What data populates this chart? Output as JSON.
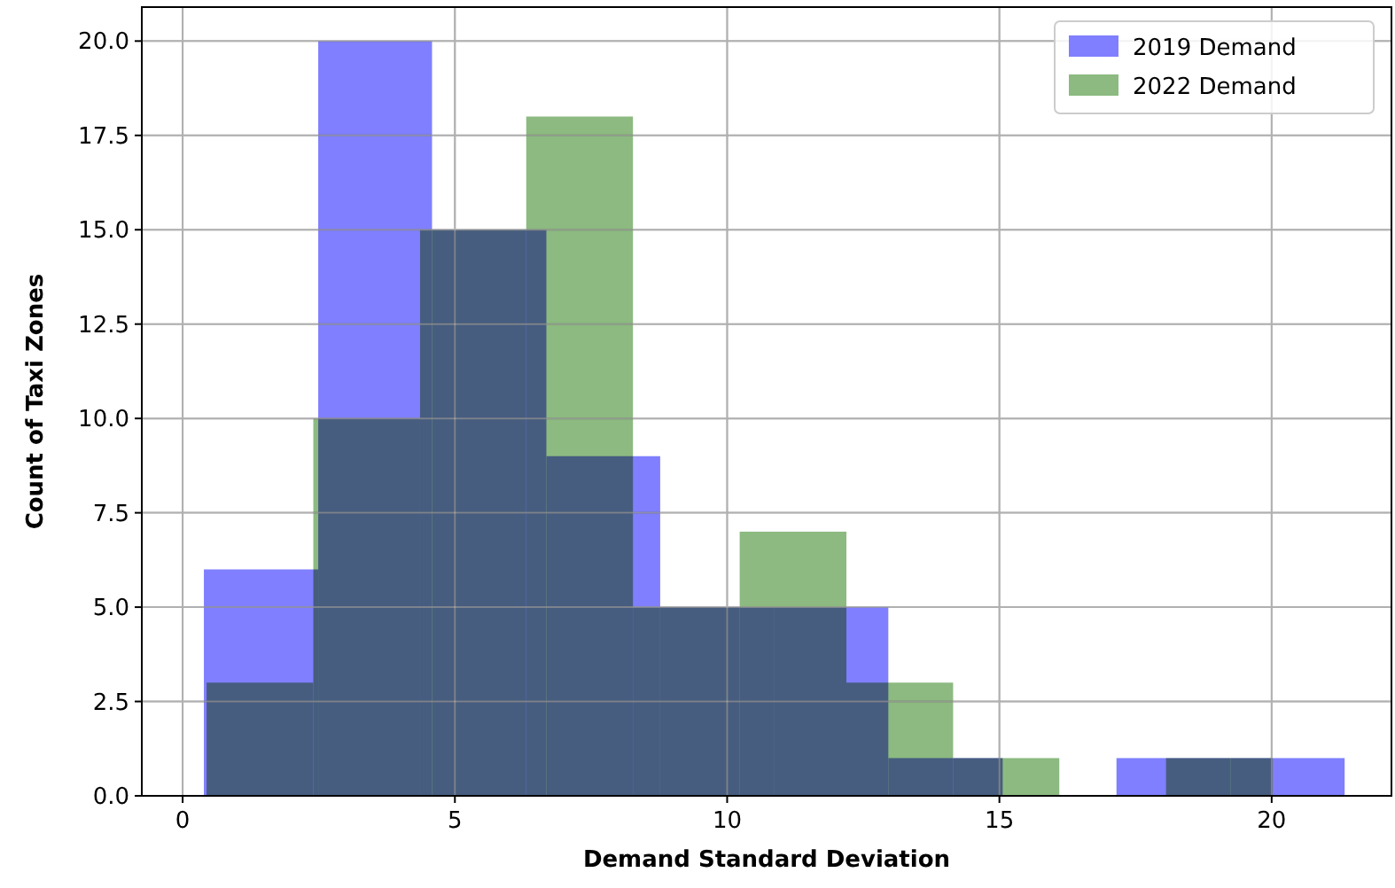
{
  "chart_data": {
    "type": "histogram",
    "xlabel": "Demand Standard Deviation",
    "ylabel": "Count of Taxi Zones",
    "bins": [
      0.39,
      2.49,
      4.58,
      6.68,
      8.77,
      10.87,
      12.96,
      15.06,
      17.15,
      19.25,
      21.34
    ],
    "series": [
      {
        "name": "2019 Demand",
        "color": "#7f7fff",
        "values": [
          6,
          20,
          15,
          9,
          5,
          5,
          1,
          0,
          1,
          1
        ]
      },
      {
        "name": "2022 Demand",
        "color": "#8cba80",
        "bins": [
          0.44,
          2.4,
          4.36,
          6.31,
          8.27,
          10.23,
          12.19,
          14.15,
          16.1,
          18.06,
          20.02
        ],
        "values": [
          3,
          10,
          15,
          18,
          5,
          7,
          3,
          1,
          0,
          1
        ]
      }
    ],
    "xlim": [
      -0.75,
      22.2
    ],
    "ylim": [
      0,
      20.9
    ],
    "xticks": [
      0,
      5,
      10,
      15,
      20
    ],
    "yticks": [
      {
        "value": 0,
        "label": "0.0"
      },
      {
        "value": 2.5,
        "label": "2.5"
      },
      {
        "value": 5,
        "label": "5.0"
      },
      {
        "value": 7.5,
        "label": "7.5"
      },
      {
        "value": 10,
        "label": "10.0"
      },
      {
        "value": 12.5,
        "label": "12.5"
      },
      {
        "value": 15,
        "label": "15.0"
      },
      {
        "value": 17.5,
        "label": "17.5"
      },
      {
        "value": 20,
        "label": "20.0"
      }
    ],
    "grid": true,
    "legend": "top right"
  }
}
